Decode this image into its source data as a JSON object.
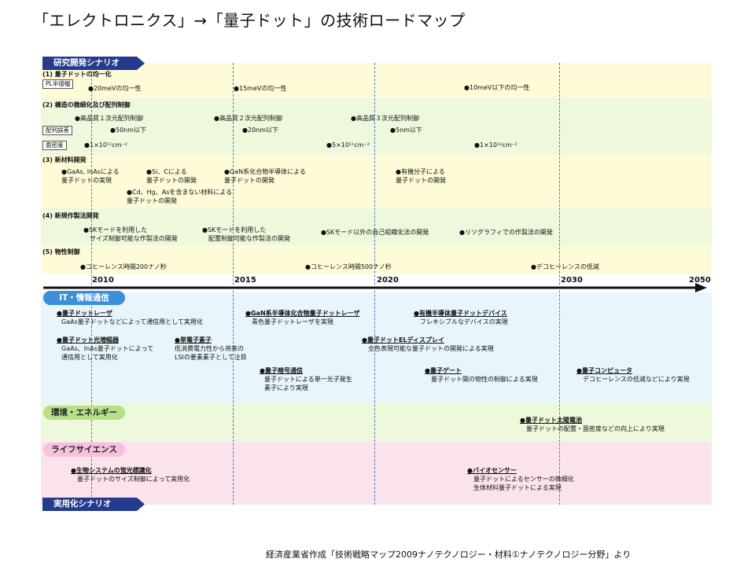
{
  "title": "「エレクトロニクス」→「量子ドット」の技術ロードマップ",
  "footer": "経済産業省作成「技術戦略マップ2009ナノテクノロジー・材料①ナノテクノロジー分野」より",
  "section_labels": {
    "research": "研究開発シナリオ",
    "practical": "実用化シナリオ",
    "it": "IT・情報通信",
    "env": "環境・エネルギー",
    "life": "ライフサイエンス"
  },
  "timeline": {
    "years": [
      "2010",
      "2015",
      "2020",
      "2030",
      "2050"
    ]
  },
  "research": {
    "s1": {
      "heading": "(1) 量子ドットの均一化",
      "tag": "PL半値幅",
      "items": [
        "●20meVの均一性",
        "●15meVの均一性",
        "●10meV以下の均一性"
      ]
    },
    "s2": {
      "heading": "(2) 構造の微細化及び配列制御",
      "row1": [
        "●高品質１次元配列制御",
        "●高品質２次元配列制御",
        "●高品質３次元配列制御"
      ],
      "tag1": "配列誤差",
      "row2": [
        "●50nm以下",
        "●20nm以下",
        "●5nm以下"
      ],
      "tag2": "面密度",
      "row3": [
        "●1×10¹¹cm⁻²",
        "●5×10¹¹cm⁻²",
        "●1×10¹²cm⁻²"
      ]
    },
    "s3": {
      "heading": "(3) 新材料開発",
      "items": [
        [
          "●GaAs, InAsによる",
          "量子ドットの実現"
        ],
        [
          "●Si、Cによる",
          "量子ドットの開発"
        ],
        [
          "●GaN系化合物半導体による",
          "量子ドットの開発"
        ],
        [
          "●有機分子による",
          "量子ドットの開発"
        ],
        [
          "●Cd、Hg、Asを含まない材料による",
          "量子ドットの開発"
        ]
      ]
    },
    "s4": {
      "heading": "(4) 新規作製法開発",
      "items": [
        [
          "●SKモードを利用した",
          "サイズ制御可能な作製法の開発"
        ],
        [
          "●SKモードを利用した",
          "配置制御可能な作製法の開発"
        ],
        [
          "●SKモード以外の自己組織化法の開発"
        ],
        [
          "●リソグラフィでの作製法の開発"
        ]
      ]
    },
    "s5": {
      "heading": "(5) 物性制御",
      "items": [
        "●コヒーレンス時間200ナノ秒",
        "●コヒーレンス時間500ナノ秒",
        "●デコヒーレンスの低減"
      ]
    }
  },
  "it": [
    {
      "title": "●量子ドットレーザ",
      "desc": [
        "GaAs量子ドットなどによって通信用として実用化"
      ]
    },
    {
      "title": "●GaN系半導体化合物量子ドットレーザ",
      "desc": [
        "青色量子ドットレーザを実現"
      ]
    },
    {
      "title": "●有機半導体量子ドットデバイス",
      "desc": [
        "フレキシブルなデバイスの実現"
      ]
    },
    {
      "title": "●量子ドット光増幅器",
      "desc": [
        "GaAs、InAs量子ドットによって",
        "通信用として実用化"
      ]
    },
    {
      "title": "●単電子素子",
      "desc": [
        "低消費電力性から将来の",
        "LSIの要素素子として注目"
      ]
    },
    {
      "title": "●量子ドットELディスプレイ",
      "desc": [
        "全色表現可能な量子ドットの開発による実現"
      ]
    },
    {
      "title": "●量子暗号通信",
      "desc": [
        "量子ドットによる単一光子発生",
        "素子により実現"
      ]
    },
    {
      "title": "●量子ゲート",
      "desc": [
        "量子ドット間の物性の制御による実現"
      ]
    },
    {
      "title": "●量子コンピュータ",
      "desc": [
        "デコヒーレンスの低減などにより実現"
      ]
    }
  ],
  "env": [
    {
      "title": "●量子ドット太陽電池",
      "desc": [
        "量子ドットの配置・面密度などの向上により実現"
      ]
    }
  ],
  "life": [
    {
      "title": "●生物システムの蛍光標識化",
      "desc": [
        "量子ドットのサイズ制御によって実用化"
      ]
    },
    {
      "title": "●バイオセンサー",
      "desc": [
        "量子ドットによるセンサーの微細化",
        "生体材料量子ドットによる実現"
      ]
    }
  ],
  "colors": {
    "research_band": "#fdfbd8",
    "research_band_alt": "#eef8dc",
    "it_band": "#e8f5fb",
    "env_band": "#eef8dc",
    "life_band": "#fbe3ee",
    "navy_label": "#243a8c",
    "dash_line": "#4a78b8",
    "it_pill": "#3a8fd8",
    "env_pill": "#b6e08a",
    "life_pill": "#f7c0dc"
  }
}
